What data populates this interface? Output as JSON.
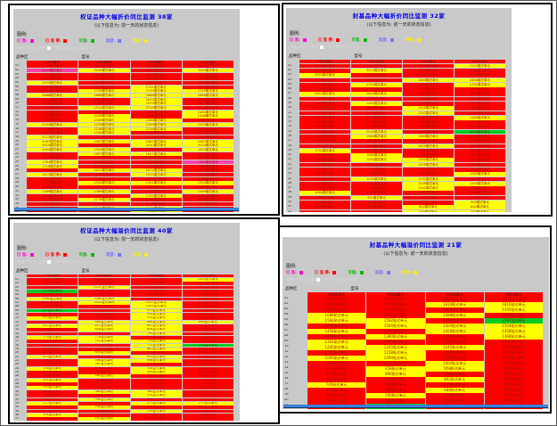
{
  "colors": {
    "R": "#ff0000",
    "Y": "#ffff00",
    "G": "#00cc22",
    "M": "#ff44aa",
    "W": "#ffffff",
    "sheet_bg": "#c9c9c9",
    "title_blue": "#0000ee",
    "cell_text": "#8a1a00",
    "scrollbar_blue": "#3c80d8"
  },
  "legend": {
    "label": "图例:",
    "items": [
      {
        "text": "已 涨:",
        "color": "#ff00cc"
      },
      {
        "text": "已 涨 停:",
        "color": "#ff0000"
      },
      {
        "text": "可涨:",
        "color": "#00bb00"
      },
      {
        "text": "观望:",
        "color": "#7777ff"
      },
      {
        "text": "待涨:",
        "color": "#ffee00"
      }
    ],
    "note_white": "未纳入同比上涨色",
    "note_dash": "属于两周以内显示为: ---"
  },
  "table_labels": {
    "left": "品种区",
    "mid": "型号"
  },
  "panels": [
    {
      "name": "top-left",
      "title": "权证品种大幅折价同比监测  38家",
      "subtitle": "(以下信息为: 前一天的状态信息)",
      "headers": [
        "0505单元",
        "0504单元",
        "0503单元",
        "0502单元"
      ],
      "suffix": "模式单元",
      "scrollbar": true,
      "rows": [
        [
          "01",
          "RRRR",
          "3104"
        ],
        [
          "02",
          "MYRY",
          "3049"
        ],
        [
          "03",
          "RRRR",
          "2962"
        ],
        [
          "04",
          "RRRR",
          "2904"
        ],
        [
          "05",
          "YRRR",
          "2850"
        ],
        [
          "06",
          "RRYR",
          "2791"
        ],
        [
          "07",
          "RYYY",
          "2745"
        ],
        [
          "08",
          "YYYY",
          "2688"
        ],
        [
          "09",
          "RRYR",
          "2632"
        ],
        [
          "10",
          "RRYR",
          "2575"
        ],
        [
          "11",
          "RYYR",
          "2519"
        ],
        [
          "12",
          "RRRY",
          "2462"
        ],
        [
          "13",
          "RYRY",
          "2406"
        ],
        [
          "14",
          "RYYR",
          "2349"
        ],
        [
          "15",
          "YYYY",
          "2293"
        ],
        [
          "16",
          "RYYR",
          "2236"
        ],
        [
          "17",
          "RYRR",
          "2180"
        ],
        [
          "18",
          "YRRR",
          "2123"
        ],
        [
          "19",
          "YYYY",
          "2067"
        ],
        [
          "20",
          "YRYY",
          "2010"
        ],
        [
          "21",
          "YYRY",
          "1954"
        ],
        [
          "22",
          "RYYR",
          "1897"
        ],
        [
          "23",
          "RRRR",
          "1841"
        ],
        [
          "24",
          "YRRM",
          "1784"
        ],
        [
          "25",
          "YRRR",
          "1728"
        ],
        [
          "26",
          "RYYR",
          "1671"
        ],
        [
          "27",
          "YRYR",
          "1615"
        ],
        [
          "28",
          "RRRR",
          "1558"
        ],
        [
          "29",
          "RYYY",
          "1502"
        ],
        [
          "30",
          "RRRR",
          "1445"
        ],
        [
          "31",
          "YYRY",
          "1389"
        ],
        [
          "32",
          "RRYR",
          "1332"
        ],
        [
          "33",
          "RYRR",
          "1276"
        ],
        [
          "34",
          "RRRR",
          "1219"
        ],
        [
          "35",
          "RYYR",
          "1163"
        ],
        [
          "36",
          "RRYR",
          "1106"
        ],
        [
          "37",
          "YYRY",
          "1050"
        ],
        [
          "38",
          "RRYR",
          "993"
        ]
      ]
    },
    {
      "name": "top-right",
      "title": "封基品种大幅折价同比监测  32家",
      "subtitle": "(以下信息为: 前一天的状态信息)",
      "headers": [
        "0505单元",
        "0504单元",
        "0503单元",
        "0502单元"
      ],
      "suffix": "模式单元",
      "scrollbar": false,
      "rows": [
        [
          "01",
          "RRRY",
          "3102"
        ],
        [
          "02",
          "RYRR",
          "3010"
        ],
        [
          "03",
          "YRRR",
          "2942"
        ],
        [
          "04",
          "RRYY",
          "2860"
        ],
        [
          "05",
          "RYRY",
          "2791"
        ],
        [
          "06",
          "RRRR",
          "2705"
        ],
        [
          "07",
          "YYRR",
          "2642"
        ],
        [
          "08",
          "RRRR",
          "2560"
        ],
        [
          "09",
          "RYRR",
          "2491"
        ],
        [
          "10",
          "RRYR",
          "2405"
        ],
        [
          "11",
          "RRYR",
          "2342"
        ],
        [
          "12",
          "RRRY",
          "2260"
        ],
        [
          "13",
          "RRRR",
          "2191"
        ],
        [
          "14",
          "RRRR",
          "2105"
        ],
        [
          "15",
          "RYRG",
          "2042"
        ],
        [
          "16",
          "RYYR",
          "1960"
        ],
        [
          "17",
          "RRRR",
          "1891"
        ],
        [
          "18",
          "RRYR",
          "1805"
        ],
        [
          "19",
          "YRRR",
          "1742"
        ],
        [
          "20",
          "RYRR",
          "1660"
        ],
        [
          "21",
          "RYYR",
          "1591"
        ],
        [
          "22",
          "RRYR",
          "1505"
        ],
        [
          "23",
          "RRRR",
          "1442"
        ],
        [
          "24",
          "RRRY",
          "1360"
        ],
        [
          "25",
          "RYYR",
          "1291"
        ],
        [
          "26",
          "RRYY",
          "1205"
        ],
        [
          "27",
          "RRYR",
          "1142"
        ],
        [
          "28",
          "YRRR",
          "1060"
        ],
        [
          "29",
          "RYRR",
          "991"
        ],
        [
          "30",
          "RRRY",
          "905"
        ],
        [
          "31",
          "RRYY",
          "842"
        ],
        [
          "32",
          "RRYY",
          "760"
        ]
      ]
    },
    {
      "name": "bottom-left",
      "title": "权证品种大幅溢价同比监测  40家",
      "subtitle": "(以下信息为: 前一天的状态信息)",
      "headers": [
        "0505单元",
        "0504单元",
        "0503单元",
        "0502单元"
      ],
      "suffix": "复式单元",
      "scrollbar": false,
      "rows": [
        [
          "01",
          "RRRY",
          "1205"
        ],
        [
          "02",
          "RRRR",
          "1176"
        ],
        [
          "03",
          "RYRR",
          "1147"
        ],
        [
          "04",
          "GRRR",
          "1118"
        ],
        [
          "05",
          "RRRR",
          "1089"
        ],
        [
          "06",
          "YYRR",
          "1060"
        ],
        [
          "07",
          "RYYR",
          "1031"
        ],
        [
          "08",
          "RRYR",
          "1002"
        ],
        [
          "09",
          "GRYR",
          "973"
        ],
        [
          "10",
          "RRYR",
          "944"
        ],
        [
          "11",
          "YRYR",
          "915"
        ],
        [
          "12",
          "RYYY",
          "886"
        ],
        [
          "13",
          "YYYR",
          "857"
        ],
        [
          "14",
          "RYYR",
          "828"
        ],
        [
          "15",
          "RRYR",
          "799"
        ],
        [
          "16",
          "YYRR",
          "770"
        ],
        [
          "17",
          "RYYR",
          "741"
        ],
        [
          "18",
          "RRYG",
          "712"
        ],
        [
          "19",
          "RRYR",
          "683"
        ],
        [
          "20",
          "RYRR",
          "654"
        ],
        [
          "21",
          "YRYR",
          "625"
        ],
        [
          "22",
          "RYYR",
          "596"
        ],
        [
          "23",
          "RYRR",
          "567"
        ],
        [
          "24",
          "YRYR",
          "538"
        ],
        [
          "25",
          "RRYR",
          "509"
        ],
        [
          "26",
          "RYRR",
          "480"
        ],
        [
          "27",
          "YRRR",
          "451"
        ],
        [
          "28",
          "RRRR",
          "422"
        ],
        [
          "29",
          "YRRR",
          "393"
        ],
        [
          "30",
          "RYYR",
          "364"
        ],
        [
          "31",
          "RRYR",
          "335"
        ],
        [
          "32",
          "RYRR",
          "306"
        ],
        [
          "33",
          "YRYY",
          "277"
        ],
        [
          "34",
          "RYRR",
          "248"
        ],
        [
          "35",
          "RRYR",
          "219"
        ],
        [
          "36",
          "YRRR",
          "190"
        ],
        [
          "37",
          "RYRR",
          "161"
        ],
        [
          "38",
          "RRYR",
          "132"
        ],
        [
          "39",
          "YRYR",
          "103"
        ],
        [
          "40",
          "RRYR",
          "74"
        ]
      ]
    },
    {
      "name": "bottom-right",
      "title": "封基品种大幅溢价同比监测  21家",
      "subtitle": "(以下信息为: 前一天的状态信息)",
      "headers": [
        "0505单元",
        "0504单元",
        "0503单元",
        "0502单元"
      ],
      "suffix": "贴式单元",
      "scrollbar": true,
      "rows": [
        [
          "01",
          "RRRR",
          "1902"
        ],
        [
          "02",
          "RRYY",
          "1810"
        ],
        [
          "03",
          "RRRY",
          "1745"
        ],
        [
          "04",
          "YRYR",
          "1688"
        ],
        [
          "05",
          "YYRG",
          "1592"
        ],
        [
          "06",
          "RYYY",
          "1504"
        ],
        [
          "07",
          "YRYY",
          "1458"
        ],
        [
          "08",
          "RYRY",
          "1390"
        ],
        [
          "09",
          "YRRR",
          "1302"
        ],
        [
          "10",
          "YYYR",
          "1245"
        ],
        [
          "11",
          "RYRR",
          "1158"
        ],
        [
          "12",
          "YYRR",
          "1090"
        ],
        [
          "13",
          "RRYR",
          "1004"
        ],
        [
          "14",
          "RYYR",
          "958"
        ],
        [
          "15",
          "RYRR",
          "890"
        ],
        [
          "16",
          "RRYR",
          "802"
        ],
        [
          "17",
          "YRRR",
          "745"
        ],
        [
          "18",
          "RRYR",
          "688"
        ],
        [
          "19",
          "RYRR",
          "590"
        ],
        [
          "20",
          "RRRR",
          "504"
        ],
        [
          "21",
          "RGRR",
          "458"
        ]
      ]
    }
  ]
}
